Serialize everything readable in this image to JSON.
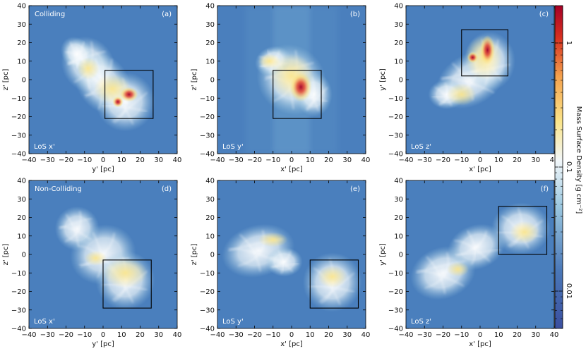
{
  "chart_data": {
    "type": "heatmap",
    "colorbar": {
      "label": "Mass Surface Density [g cm⁻²]",
      "ticks": [
        "1",
        "0.1",
        "0.01"
      ],
      "scale": "log",
      "colors": [
        "#3a4fa0",
        "#4a78b8",
        "#9cc8e0",
        "#f2f7fa",
        "#fbe58a",
        "#f4a24d",
        "#d7301f",
        "#a50026"
      ]
    },
    "panels": [
      {
        "id": "(a)",
        "row_label": "Colliding",
        "los": "LoS x'",
        "xlabel": "y' [pc]",
        "ylabel": "z' [pc]",
        "xlim": [
          -40,
          40
        ],
        "ylim": [
          -40,
          40
        ],
        "xticks": [
          "−40",
          "−30",
          "−20",
          "−10",
          "0",
          "10",
          "20",
          "30",
          "40"
        ],
        "yticks": [
          "−40",
          "−30",
          "−20",
          "−10",
          "0",
          "10",
          "20",
          "30",
          "40"
        ],
        "box": {
          "x0": 1,
          "x1": 27,
          "y0": -21,
          "y1": 5
        }
      },
      {
        "id": "(b)",
        "row_label": "",
        "los": "LoS y'",
        "xlabel": "x' [pc]",
        "ylabel": "z' [pc]",
        "xlim": [
          -40,
          40
        ],
        "ylim": [
          -40,
          40
        ],
        "xticks": [
          "−40",
          "−30",
          "−20",
          "−10",
          "0",
          "10",
          "20",
          "30",
          "40"
        ],
        "yticks": [
          "−40",
          "−30",
          "−20",
          "−10",
          "0",
          "10",
          "20",
          "30",
          "40"
        ],
        "box": {
          "x0": -10,
          "x1": 16,
          "y0": -21,
          "y1": 5
        }
      },
      {
        "id": "(c)",
        "row_label": "",
        "los": "LoS z'",
        "xlabel": "x' [pc]",
        "ylabel": "y' [pc]",
        "xlim": [
          -40,
          40
        ],
        "ylim": [
          -40,
          40
        ],
        "xticks": [
          "−40",
          "−30",
          "−20",
          "−10",
          "0",
          "10",
          "20",
          "30",
          "40"
        ],
        "yticks": [
          "−40",
          "−30",
          "−20",
          "−10",
          "0",
          "10",
          "20",
          "30",
          "40"
        ],
        "box": {
          "x0": -10,
          "x1": 15,
          "y0": 2,
          "y1": 27
        }
      },
      {
        "id": "(d)",
        "row_label": "Non-Colliding",
        "los": "LoS x'",
        "xlabel": "y' [pc]",
        "ylabel": "z' [pc]",
        "xlim": [
          -40,
          40
        ],
        "ylim": [
          -40,
          40
        ],
        "xticks": [
          "−40",
          "−30",
          "−20",
          "−10",
          "0",
          "10",
          "20",
          "30",
          "40"
        ],
        "yticks": [
          "−40",
          "−30",
          "−20",
          "−10",
          "0",
          "10",
          "20",
          "30",
          "40"
        ],
        "box": {
          "x0": 0,
          "x1": 26,
          "y0": -29,
          "y1": -3
        }
      },
      {
        "id": "(e)",
        "row_label": "",
        "los": "LoS y'",
        "xlabel": "x' [pc]",
        "ylabel": "z' [pc]",
        "xlim": [
          -40,
          40
        ],
        "ylim": [
          -40,
          40
        ],
        "xticks": [
          "−40",
          "−30",
          "−20",
          "−10",
          "0",
          "10",
          "20",
          "30",
          "40"
        ],
        "yticks": [
          "−40",
          "−30",
          "−20",
          "−10",
          "0",
          "10",
          "20",
          "30",
          "40"
        ],
        "box": {
          "x0": 10,
          "x1": 36,
          "y0": -29,
          "y1": -3
        }
      },
      {
        "id": "(f)",
        "row_label": "",
        "los": "LoS z'",
        "xlabel": "x' [pc]",
        "ylabel": "y' [pc]",
        "xlim": [
          -40,
          40
        ],
        "ylim": [
          -40,
          40
        ],
        "xticks": [
          "−40",
          "−30",
          "−20",
          "−10",
          "0",
          "10",
          "20",
          "30",
          "40"
        ],
        "yticks": [
          "−40",
          "−30",
          "−20",
          "−10",
          "0",
          "10",
          "20",
          "30",
          "40"
        ],
        "box": {
          "x0": 10,
          "x1": 36,
          "y0": 0,
          "y1": 26
        }
      }
    ]
  }
}
